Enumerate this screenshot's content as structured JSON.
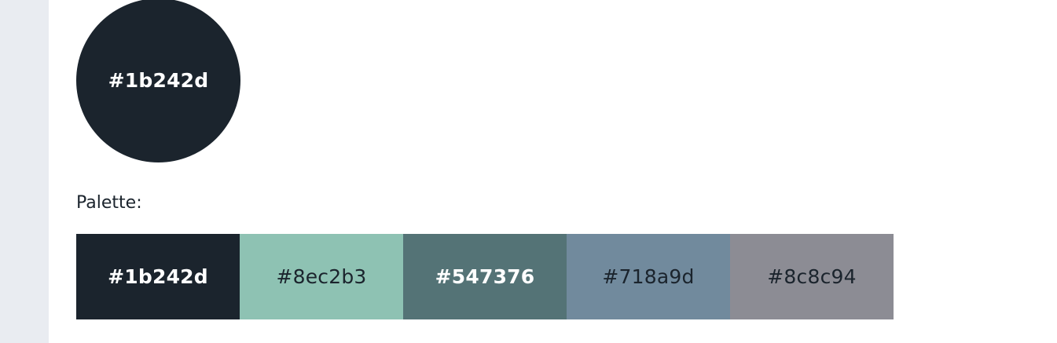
{
  "dominant": {
    "label": "#1b242d",
    "color": "#1b242d",
    "text_color": "#ffffff"
  },
  "palette_heading": "Palette:",
  "palette": [
    {
      "label": "#1b242d",
      "color": "#1b242d",
      "text_color": "#ffffff",
      "bold": true
    },
    {
      "label": "#8ec2b3",
      "color": "#8ec2b3",
      "text_color": "#1b242d",
      "bold": false
    },
    {
      "label": "#547376",
      "color": "#547376",
      "text_color": "#ffffff",
      "bold": true
    },
    {
      "label": "#718a9d",
      "color": "#718a9d",
      "text_color": "#1b242d",
      "bold": false
    },
    {
      "label": "#8c8c94",
      "color": "#8c8c94",
      "text_color": "#1b242d",
      "bold": false
    }
  ]
}
